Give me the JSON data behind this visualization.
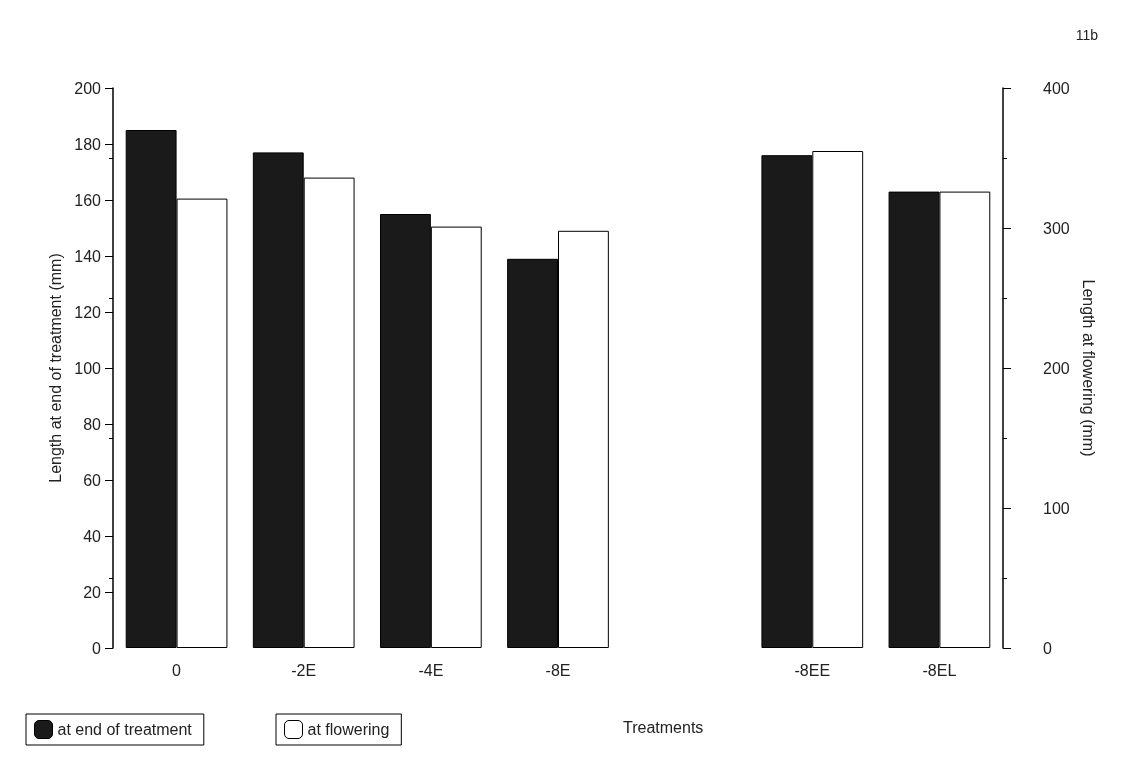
{
  "chart_data": {
    "type": "bar",
    "categories": [
      "0",
      "-2E",
      "-4E",
      "-8E",
      null,
      "-8EE",
      "-8EL"
    ],
    "series": [
      {
        "name": "at end of treatment",
        "color": "#1a1a1a",
        "values": [
          185,
          177,
          155,
          139,
          null,
          176,
          163
        ]
      },
      {
        "name": "at flowering",
        "color": "#ffffff",
        "axis": "y2",
        "values": [
          321,
          336,
          301,
          298,
          null,
          355,
          326
        ]
      }
    ],
    "xlabel": "Treatments",
    "ylabel": "Length at end of treatment (mm)",
    "y2label": "Length at flowering (mm)",
    "ylim": [
      0,
      200
    ],
    "yticks": [
      0,
      20,
      40,
      60,
      80,
      100,
      120,
      140,
      160,
      180,
      200
    ],
    "y2lim": [
      0,
      400
    ],
    "y2ticks": [
      0,
      100,
      200,
      300,
      400
    ],
    "legend": "bottom left",
    "annotations": [
      "11b"
    ]
  }
}
